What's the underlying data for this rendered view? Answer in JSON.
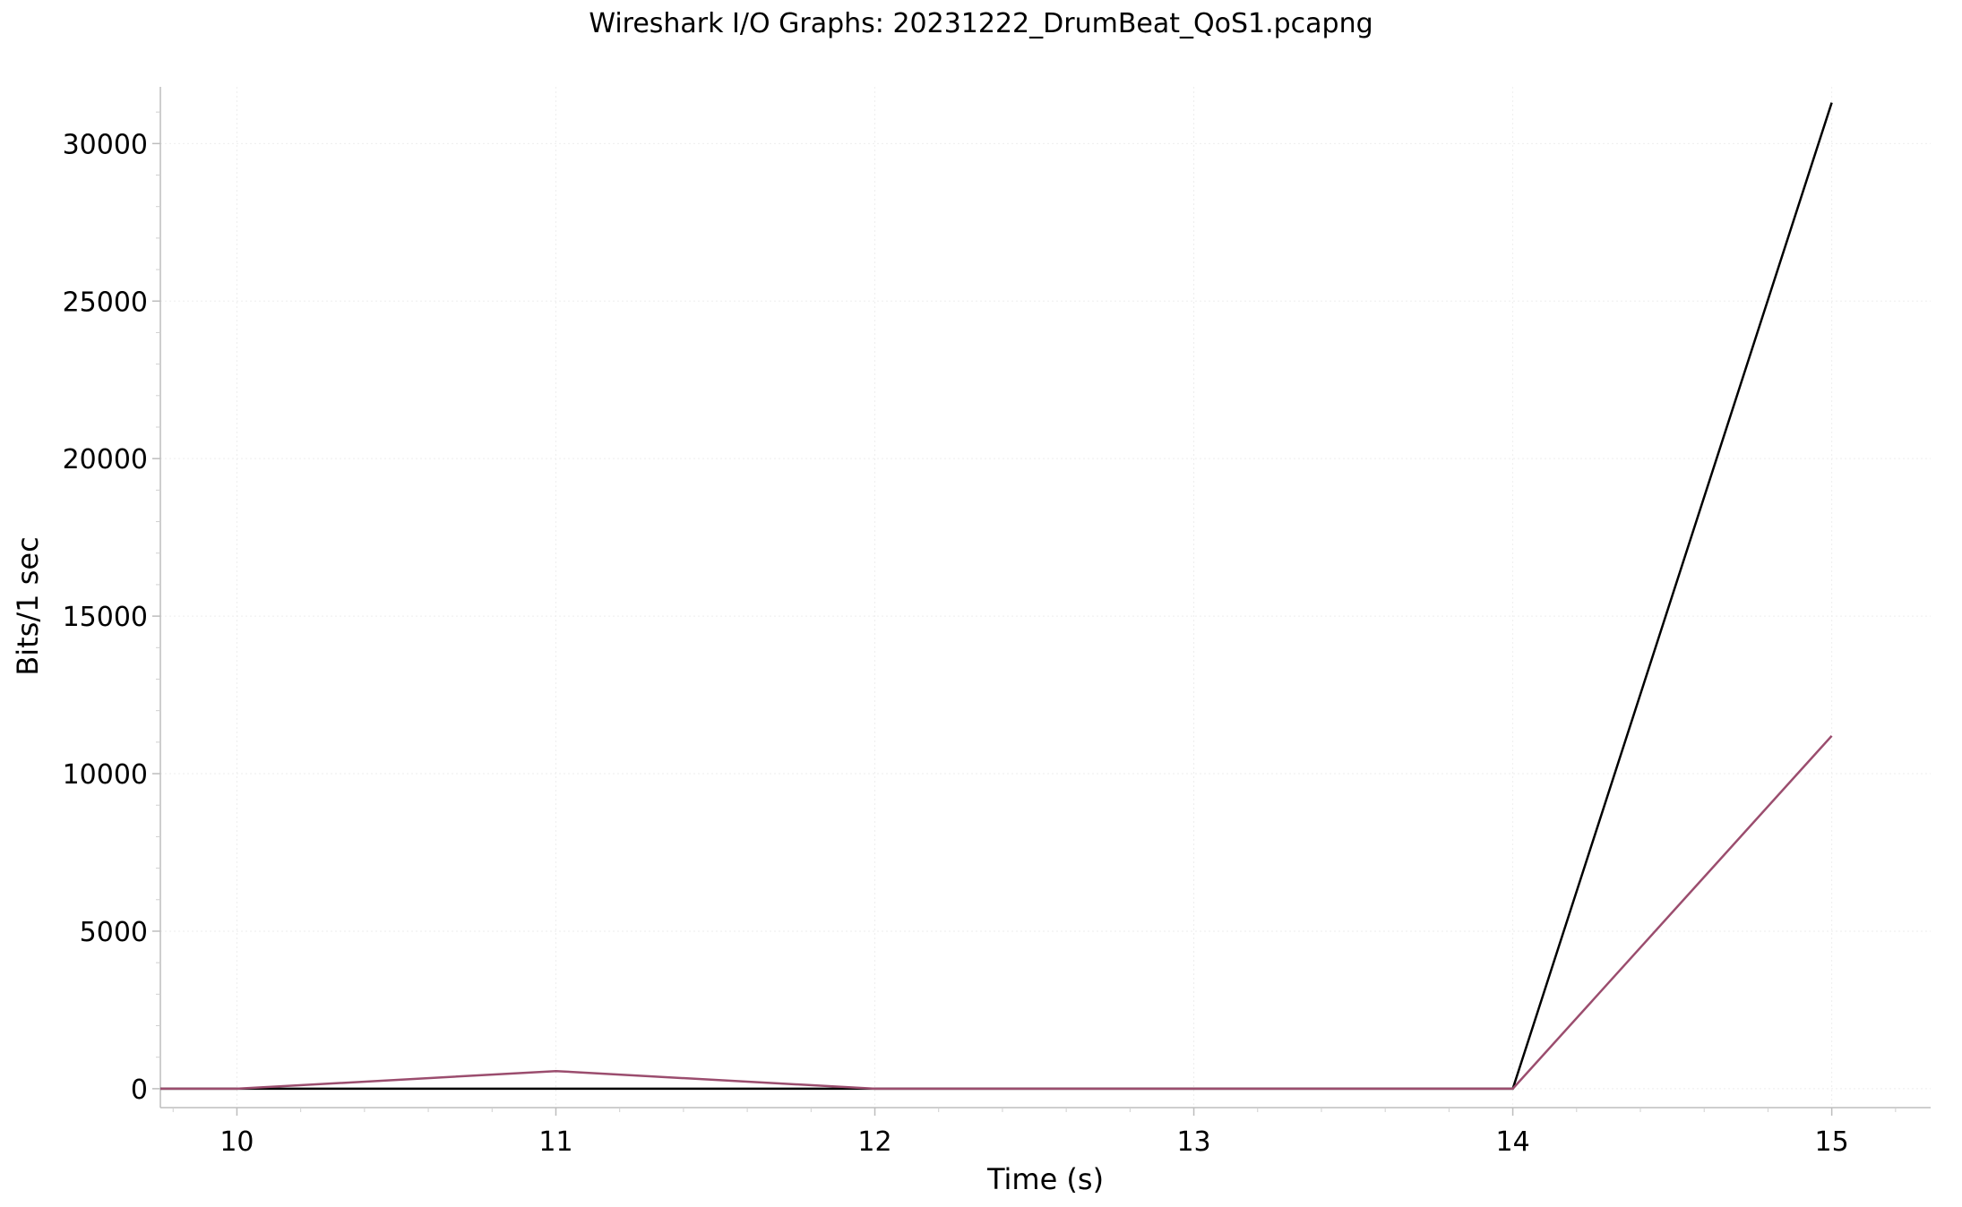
{
  "chart_data": {
    "type": "line",
    "title": "Wireshark I/O Graphs: 20231222_DrumBeat_QoS1.pcapng",
    "xlabel": "Time (s)",
    "ylabel": "Bits/1 sec",
    "xlim": [
      9.76,
      15.31
    ],
    "ylim": [
      -600,
      31800
    ],
    "xticks": [
      10,
      11,
      12,
      13,
      14,
      15
    ],
    "yticks": [
      0,
      5000,
      10000,
      15000,
      20000,
      25000,
      30000
    ],
    "x_minor_step": 0.2,
    "y_minor_step": 1000,
    "grid": true,
    "legend": "none",
    "series": [
      {
        "color": "#000000",
        "x": [
          9.76,
          10,
          11,
          12,
          13,
          14,
          15
        ],
        "values": [
          0,
          0,
          0,
          0,
          0,
          0,
          31300
        ]
      },
      {
        "color": "#9b4d6e",
        "x": [
          9.76,
          10,
          11,
          12,
          13,
          14,
          15
        ],
        "values": [
          0,
          0,
          560,
          0,
          0,
          0,
          11200
        ]
      }
    ]
  }
}
